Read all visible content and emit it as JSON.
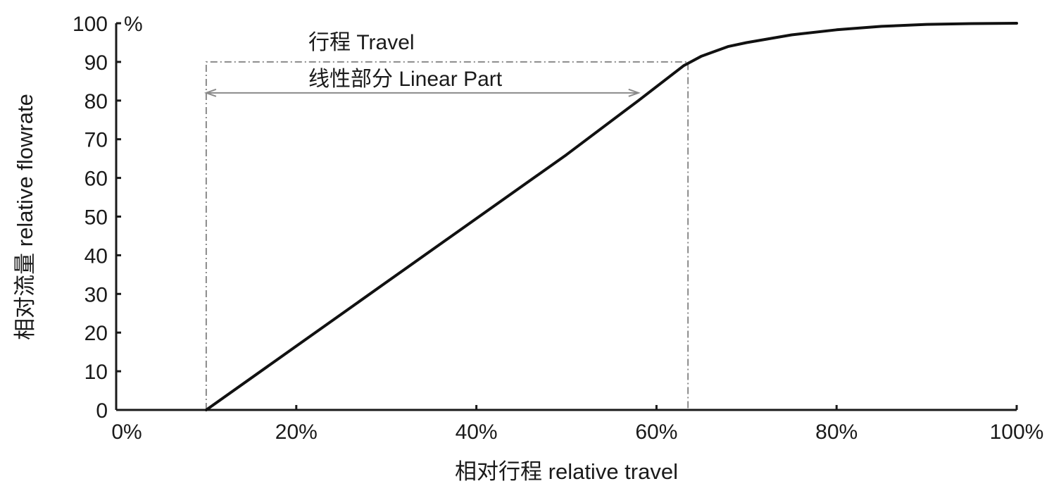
{
  "chart_data": {
    "type": "line",
    "xlabel": "相对行程 relative travel",
    "ylabel": "相对流量 relative flowrate",
    "xlim": [
      0,
      100
    ],
    "ylim": [
      0,
      100
    ],
    "x_ticks": [
      {
        "value": 0,
        "label": "0%"
      },
      {
        "value": 20,
        "label": "20%"
      },
      {
        "value": 40,
        "label": "40%"
      },
      {
        "value": 60,
        "label": "60%"
      },
      {
        "value": 80,
        "label": "80%"
      },
      {
        "value": 100,
        "label": "100%"
      }
    ],
    "y_ticks": [
      {
        "value": 0,
        "label": "0"
      },
      {
        "value": 10,
        "label": "10"
      },
      {
        "value": 20,
        "label": "20"
      },
      {
        "value": 30,
        "label": "30"
      },
      {
        "value": 40,
        "label": "40"
      },
      {
        "value": 50,
        "label": "50"
      },
      {
        "value": 60,
        "label": "60"
      },
      {
        "value": 70,
        "label": "70"
      },
      {
        "value": 80,
        "label": "80"
      },
      {
        "value": 90,
        "label": "90"
      },
      {
        "value": 100,
        "label": "100"
      }
    ],
    "y_unit": "%",
    "grid": false,
    "series": [
      {
        "x": [
          10,
          20,
          30,
          40,
          50,
          58,
          63,
          65,
          68,
          70,
          75,
          80,
          85,
          90,
          95,
          100
        ],
        "y": [
          0,
          16.5,
          33,
          49.5,
          66,
          80,
          89,
          91.5,
          94,
          95,
          97,
          98.3,
          99.2,
          99.7,
          99.9,
          100
        ]
      }
    ],
    "annotations": {
      "travel_label": "行程 Travel",
      "linear_label": "线性部分 Linear Part",
      "travel_start_x": 10,
      "travel_end_x": 63.5,
      "travel_level_y": 90,
      "linear_end_x": 58,
      "linear_level_y": 82
    }
  }
}
